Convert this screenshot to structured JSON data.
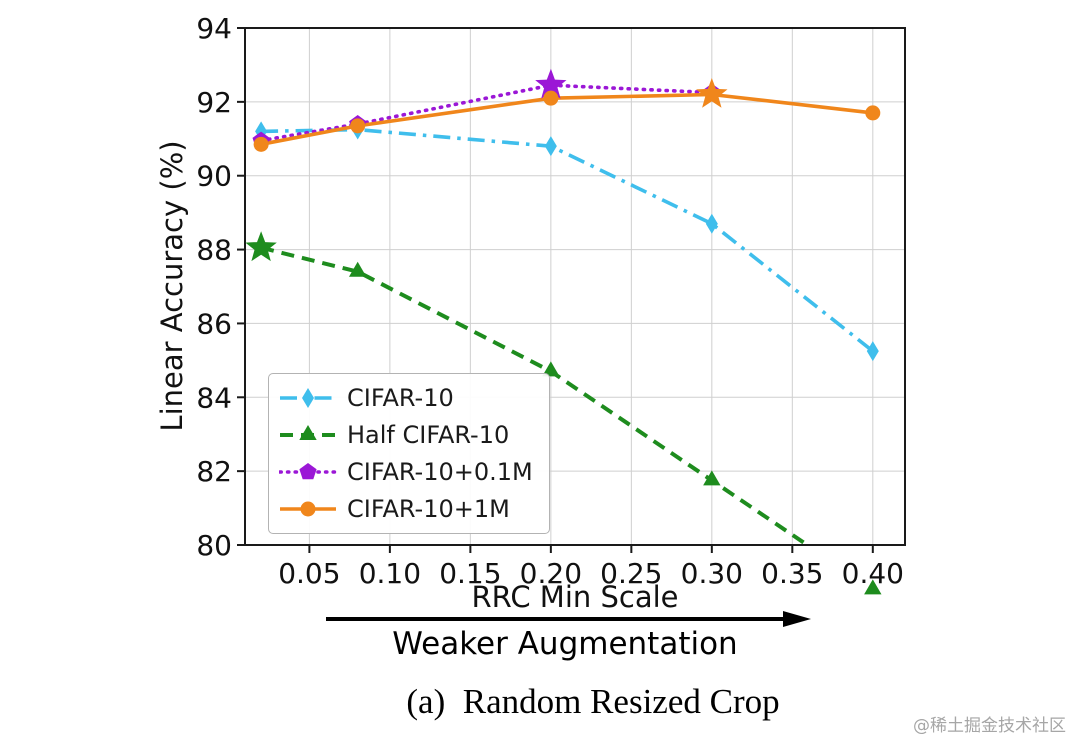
{
  "page": {
    "caption": "(a)  Random Resized Crop",
    "watermark": "@稀土掘金技术社区"
  },
  "chart_data": {
    "type": "line",
    "title": "",
    "xlabel": "RRC Min Scale",
    "ylabel": "Linear Accuracy (%)",
    "xlim": [
      0.01,
      0.42
    ],
    "ylim": [
      80,
      94
    ],
    "xticks": [
      0.05,
      0.1,
      0.15,
      0.2,
      0.25,
      0.3,
      0.35,
      0.4
    ],
    "yticks": [
      80,
      82,
      84,
      86,
      88,
      90,
      92,
      94
    ],
    "grid": true,
    "legend_position": "lower left",
    "annotation": {
      "text": "Weaker Augmentation",
      "arrow_direction": "right",
      "position": "below-x-axis"
    },
    "x": [
      0.02,
      0.08,
      0.2,
      0.3,
      0.4
    ],
    "series": [
      {
        "name": "CIFAR-10",
        "color": "#3FBEEC",
        "linestyle": "dashdot",
        "marker": "thin-diamond",
        "values": [
          91.2,
          91.25,
          90.8,
          88.7,
          85.25
        ]
      },
      {
        "name": "Half CIFAR-10",
        "color": "#1E8C1E",
        "linestyle": "dashed",
        "marker": "triangle-up",
        "values": [
          88.05,
          87.4,
          84.7,
          81.75,
          78.8
        ],
        "star_at_x": 0.02
      },
      {
        "name": "CIFAR-10+0.1M",
        "color": "#9B17D6",
        "linestyle": "dotted",
        "marker": "pentagon",
        "values": [
          90.95,
          91.4,
          92.45,
          92.25,
          null
        ],
        "star_at_x": 0.2
      },
      {
        "name": "CIFAR-10+1M",
        "color": "#F0861B",
        "linestyle": "solid",
        "marker": "circle",
        "values": [
          90.85,
          91.35,
          92.1,
          92.2,
          91.7
        ],
        "star_at_x": 0.3
      }
    ]
  }
}
